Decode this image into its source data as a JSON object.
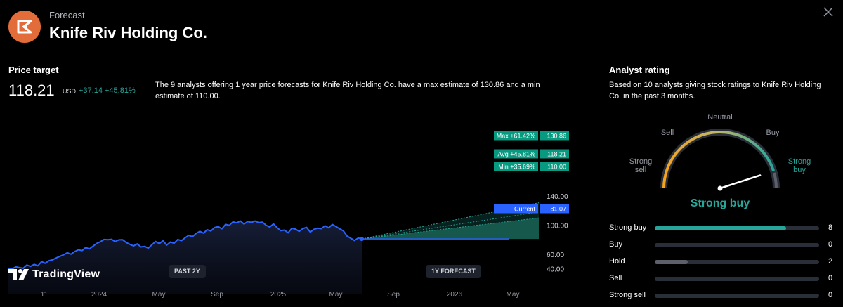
{
  "header": {
    "subtitle": "Forecast",
    "title": "Knife Riv Holding Co."
  },
  "price_target": {
    "label": "Price target",
    "value": "118.21",
    "currency": "USD",
    "change": "+37.14  +45.81%",
    "description": "The 9 analysts offering 1 year price forecasts for Knife Riv Holding Co. have a max estimate of 130.86 and a min estimate of 110.00."
  },
  "chart_data": {
    "type": "line",
    "x_ticks": [
      "11",
      "2024",
      "May",
      "Sep",
      "2025",
      "May",
      "Sep",
      "2026",
      "May"
    ],
    "y_ticks": [
      "140.00",
      "100.00",
      "60.00",
      "40.00"
    ],
    "ylim": [
      40,
      140
    ],
    "history": [
      40.5,
      39.8,
      42.5,
      41.6,
      40.6,
      45.0,
      43.2,
      46.0,
      44.0,
      49.8,
      47.5,
      51.0,
      52.3,
      54.9,
      57.1,
      59.3,
      62.0,
      60.0,
      63.7,
      66.0,
      65.0,
      69.2,
      67.3,
      71.2,
      74.9,
      77.3,
      80.3,
      80.0,
      80.6,
      77.4,
      79.8,
      80.0,
      76.1,
      73.6,
      71.5,
      74.3,
      70.0,
      70.8,
      68.4,
      73.1,
      77.6,
      74.7,
      78.4,
      72.5,
      76.8,
      75.1,
      80.3,
      78.6,
      82.5,
      86.1,
      84.1,
      88.7,
      91.6,
      89.0,
      93.8,
      92.0,
      96.7,
      98.0,
      95.1,
      101.2,
      99.8,
      104.6,
      103.2,
      105.8,
      101.6,
      105.1,
      103.8,
      105.7,
      103.5,
      104.2,
      99.9,
      97.5,
      101.8,
      96.4,
      92.5,
      93.2,
      89.5,
      95.8,
      94.6,
      91.5,
      95.4,
      97.0,
      90.5,
      94.2,
      96.0,
      95.2,
      99.1,
      96.4,
      101.0,
      98.1,
      95.0,
      92.2,
      85.0,
      82.0,
      78.8,
      82.3,
      81.1
    ],
    "current": 81.07,
    "targets": {
      "max": {
        "label": "Max +61.42%",
        "value": 130.86,
        "value_text": "130.86"
      },
      "avg": {
        "label": "Avg +45.81%",
        "value": 118.21,
        "value_text": "118.21"
      },
      "min": {
        "label": "Min +35.69%",
        "value": 110.0,
        "value_text": "110.00"
      },
      "current": {
        "label": "Current",
        "value": 81.07,
        "value_text": "81.07"
      }
    },
    "periods": {
      "past": "PAST 2Y",
      "forecast": "1Y FORECAST"
    }
  },
  "brand": {
    "name": "TradingView"
  },
  "analyst_rating": {
    "label": "Analyst rating",
    "description": "Based on 10 analysts giving stock ratings to Knife Riv Holding Co. in the past 3 months.",
    "gauge_labels": {
      "strong_sell": "Strong sell",
      "sell": "Sell",
      "neutral": "Neutral",
      "buy": "Buy",
      "strong_buy": "Strong buy"
    },
    "result": "Strong buy",
    "total": 10,
    "ratings": [
      {
        "name": "Strong buy",
        "count": 8,
        "count_text": "8",
        "color": "#26a69a"
      },
      {
        "name": "Buy",
        "count": 0,
        "count_text": "0",
        "color": "#26a69a"
      },
      {
        "name": "Hold",
        "count": 2,
        "count_text": "2",
        "color": "#5d606b"
      },
      {
        "name": "Sell",
        "count": 0,
        "count_text": "0",
        "color": "#5d606b"
      },
      {
        "name": "Strong sell",
        "count": 0,
        "count_text": "0",
        "color": "#5d606b"
      }
    ]
  },
  "colors": {
    "line": "#2962ff",
    "teal": "#26a69a",
    "tag_green": "#089981",
    "accent_orange": "#e26d3b"
  }
}
